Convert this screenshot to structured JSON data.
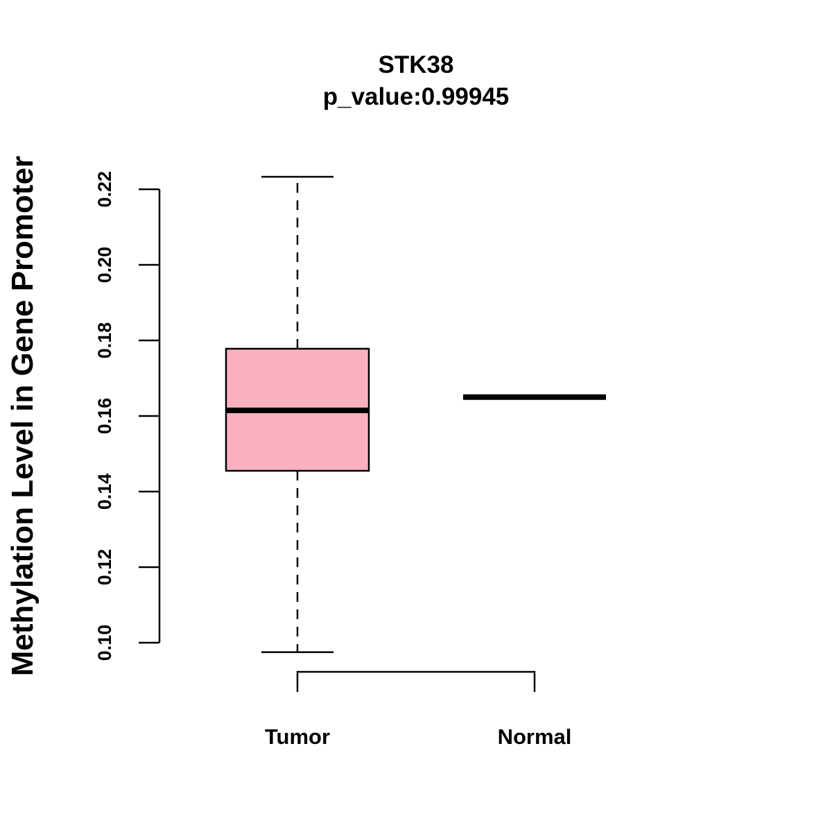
{
  "chart_data": {
    "type": "boxplot",
    "title": "STK38",
    "subtitle": "p_value:0.99945",
    "ylabel": "Methylation Level in Gene Promoter",
    "xlabel": "",
    "categories": [
      "Tumor",
      "Normal"
    ],
    "ylim": [
      0.1,
      0.22
    ],
    "yticks": [
      0.1,
      0.12,
      0.14,
      0.16,
      0.18,
      0.2,
      0.22
    ],
    "ytick_labels": [
      "0.10",
      "0.12",
      "0.14",
      "0.16",
      "0.18",
      "0.20",
      "0.22"
    ],
    "boxes": [
      {
        "name": "Tumor",
        "whisker_low": 0.0975,
        "q1": 0.1455,
        "median": 0.1615,
        "q3": 0.1778,
        "whisker_high": 0.2233,
        "fill": "#FBB0C1"
      },
      {
        "name": "Normal",
        "whisker_low": 0.165,
        "q1": 0.165,
        "median": 0.165,
        "q3": 0.165,
        "whisker_high": 0.165,
        "fill": "#FBB0C1"
      }
    ],
    "grid": false,
    "legend": "none"
  }
}
